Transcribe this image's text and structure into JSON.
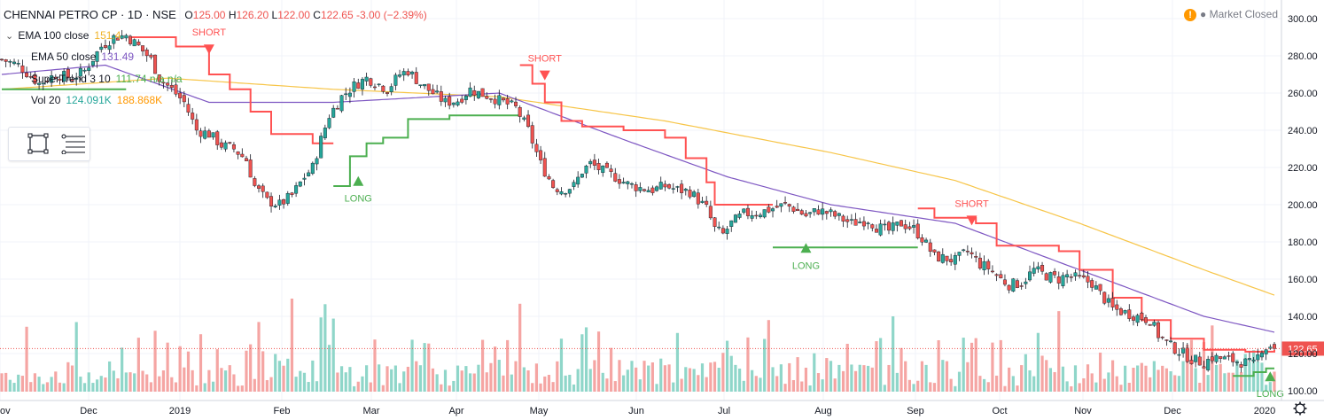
{
  "header": {
    "symbol": "CHENNAI PETRO CP · 1D · NSE",
    "ohlc_open_label": "O",
    "ohlc_open": "125.00",
    "ohlc_high_label": "H",
    "ohlc_high": "126.20",
    "ohlc_low_label": "L",
    "ohlc_low": "122.00",
    "ohlc_close_label": "C",
    "ohlc_close": "122.65",
    "ohlc_change": "-3.00 (−2.39%)",
    "market_status": "Market Closed",
    "market_icon": "!"
  },
  "indicators": [
    {
      "label": "EMA 100 close",
      "value": "151.4",
      "color": "#f7c548"
    },
    {
      "label": "EMA 50 close",
      "value": "131.49",
      "color": "#7e57c2"
    },
    {
      "label": "SuperTrend 3 10",
      "value": "111.74 n/a n/a",
      "color": "#4caf50"
    },
    {
      "label": "Vol 20",
      "value": "124.091K",
      "value2": "188.868K",
      "color": "#4caf50",
      "color2": "#ff9800"
    }
  ],
  "last_price_label": "122.65",
  "colors": {
    "up": "#26a69a",
    "down": "#ef5350",
    "vol_up": "#8fd6c9",
    "vol_down": "#f5a5a3",
    "st_up": "#4caf50",
    "st_down": "#ff5252",
    "ema100": "#f7c548",
    "ema50": "#7e57c2"
  },
  "chart_data": {
    "type": "candlestick",
    "title": "CHENNAI PETRO CP · 1D · NSE",
    "y_ticks": [
      "300.00",
      "280.00",
      "260.00",
      "240.00",
      "220.00",
      "200.00",
      "180.00",
      "160.00",
      "140.00",
      "120.00",
      "100.00"
    ],
    "ylim": [
      100,
      302
    ],
    "x_ticks": [
      "ov",
      "Dec",
      "2019",
      "Feb",
      "Mar",
      "Apr",
      "May",
      "Jun",
      "Jul",
      "Aug",
      "Sep",
      "Oct",
      "Nov",
      "Dec",
      "2020"
    ],
    "signals": [
      {
        "label": "SHORT",
        "type": "short",
        "date": "2019-01-10",
        "price": 288
      },
      {
        "label": "LONG",
        "type": "long",
        "date": "2019-03-01",
        "price": 213
      },
      {
        "label": "SHORT",
        "type": "short",
        "date": "2019-05-02",
        "price": 274
      },
      {
        "label": "LONG",
        "type": "long",
        "date": "2019-07-29",
        "price": 177
      },
      {
        "label": "SHORT",
        "type": "short",
        "date": "2019-09-23",
        "price": 196
      },
      {
        "label": "LONG",
        "type": "long",
        "date": "2020-01-01",
        "price": 108
      }
    ],
    "price_anchors": [
      [
        0,
        278
      ],
      [
        4,
        275
      ],
      [
        9,
        265
      ],
      [
        13,
        270
      ],
      [
        17,
        268
      ],
      [
        20,
        272
      ],
      [
        24,
        285
      ],
      [
        27,
        290
      ],
      [
        30,
        291
      ],
      [
        33,
        285
      ],
      [
        36,
        278
      ],
      [
        38,
        268
      ],
      [
        41,
        262
      ],
      [
        44,
        255
      ],
      [
        47,
        240
      ],
      [
        50,
        238
      ],
      [
        53,
        232
      ],
      [
        56,
        230
      ],
      [
        59,
        224
      ],
      [
        61,
        210
      ],
      [
        64,
        202
      ],
      [
        67,
        200
      ],
      [
        70,
        205
      ],
      [
        73,
        215
      ],
      [
        75,
        220
      ],
      [
        77,
        235
      ],
      [
        79,
        248
      ],
      [
        82,
        258
      ],
      [
        85,
        264
      ],
      [
        88,
        268
      ],
      [
        90,
        266
      ],
      [
        93,
        262
      ],
      [
        96,
        270
      ],
      [
        98,
        272
      ],
      [
        101,
        265
      ],
      [
        104,
        260
      ],
      [
        107,
        255
      ],
      [
        110,
        256
      ],
      [
        113,
        262
      ],
      [
        115,
        260
      ],
      [
        118,
        258
      ],
      [
        121,
        255
      ],
      [
        124,
        252
      ],
      [
        127,
        240
      ],
      [
        130,
        222
      ],
      [
        133,
        210
      ],
      [
        135,
        208
      ],
      [
        138,
        210
      ],
      [
        140,
        218
      ],
      [
        142,
        222
      ],
      [
        145,
        218
      ],
      [
        148,
        215
      ],
      [
        151,
        211
      ],
      [
        154,
        209
      ],
      [
        157,
        208
      ],
      [
        160,
        210
      ],
      [
        163,
        208
      ],
      [
        166,
        207
      ],
      [
        170,
        198
      ],
      [
        172,
        187
      ],
      [
        174,
        184
      ],
      [
        176,
        190
      ],
      [
        179,
        195
      ],
      [
        183,
        196
      ],
      [
        186,
        198
      ],
      [
        189,
        200
      ],
      [
        191,
        198
      ],
      [
        194,
        194
      ],
      [
        197,
        197
      ],
      [
        200,
        195
      ],
      [
        202,
        193
      ],
      [
        205,
        190
      ],
      [
        209,
        192
      ],
      [
        211,
        188
      ],
      [
        214,
        186
      ],
      [
        217,
        190
      ],
      [
        220,
        187
      ],
      [
        222,
        182
      ],
      [
        225,
        172
      ],
      [
        228,
        171
      ],
      [
        230,
        170
      ],
      [
        233,
        175
      ],
      [
        236,
        168
      ],
      [
        238,
        166
      ],
      [
        241,
        160
      ],
      [
        243,
        157
      ],
      [
        246,
        158
      ],
      [
        249,
        165
      ],
      [
        252,
        162
      ],
      [
        255,
        160
      ],
      [
        257,
        162
      ],
      [
        260,
        160
      ],
      [
        263,
        158
      ],
      [
        265,
        152
      ],
      [
        268,
        144
      ],
      [
        271,
        142
      ],
      [
        274,
        140
      ],
      [
        277,
        138
      ],
      [
        279,
        130
      ],
      [
        282,
        124
      ],
      [
        285,
        120
      ],
      [
        287,
        117
      ],
      [
        290,
        115
      ],
      [
        292,
        118
      ],
      [
        295,
        117
      ],
      [
        298,
        116
      ],
      [
        300,
        115
      ],
      [
        302,
        114
      ],
      [
        304,
        123
      ],
      [
        306,
        124
      ],
      [
        307,
        122.65
      ]
    ],
    "n_bars": 308,
    "ema100_anchors": [
      [
        0,
        262
      ],
      [
        40,
        268
      ],
      [
        80,
        262
      ],
      [
        120,
        258
      ],
      [
        160,
        245
      ],
      [
        200,
        228
      ],
      [
        230,
        213
      ],
      [
        260,
        190
      ],
      [
        290,
        165
      ],
      [
        307,
        151.4
      ]
    ],
    "ema50_anchors": [
      [
        0,
        270
      ],
      [
        25,
        275
      ],
      [
        50,
        255
      ],
      [
        80,
        255
      ],
      [
        120,
        260
      ],
      [
        150,
        235
      ],
      [
        175,
        215
      ],
      [
        200,
        200
      ],
      [
        230,
        190
      ],
      [
        260,
        165
      ],
      [
        290,
        140
      ],
      [
        307,
        131.49
      ]
    ],
    "supertrend": [
      {
        "dir": "up",
        "points": [
          [
            0,
            262
          ],
          [
            23,
            262
          ],
          [
            30,
            262
          ]
        ]
      },
      {
        "dir": "down",
        "points": [
          [
            31,
            290
          ],
          [
            37,
            290
          ],
          [
            42,
            285
          ],
          [
            50,
            270
          ],
          [
            55,
            262
          ],
          [
            60,
            250
          ],
          [
            65,
            238
          ],
          [
            75,
            233
          ],
          [
            80,
            233
          ]
        ]
      },
      {
        "dir": "up",
        "points": [
          [
            80,
            210
          ],
          [
            84,
            226
          ],
          [
            88,
            233
          ],
          [
            92,
            236
          ],
          [
            98,
            246
          ],
          [
            108,
            248
          ],
          [
            118,
            248
          ],
          [
            125,
            248
          ]
        ]
      },
      {
        "dir": "down",
        "points": [
          [
            125,
            275
          ],
          [
            128,
            265
          ],
          [
            131,
            255
          ],
          [
            135,
            245
          ],
          [
            140,
            242
          ],
          [
            150,
            240
          ],
          [
            160,
            236
          ],
          [
            165,
            225
          ],
          [
            170,
            212
          ],
          [
            172,
            200
          ],
          [
            180,
            200
          ],
          [
            186,
            200
          ]
        ]
      },
      {
        "dir": "up",
        "points": [
          [
            186,
            177
          ],
          [
            200,
            177
          ],
          [
            215,
            177
          ],
          [
            221,
            177
          ]
        ]
      },
      {
        "dir": "down",
        "points": [
          [
            221,
            198
          ],
          [
            225,
            193
          ],
          [
            235,
            190
          ],
          [
            240,
            178
          ],
          [
            255,
            175
          ],
          [
            260,
            165
          ],
          [
            268,
            150
          ],
          [
            275,
            138
          ],
          [
            282,
            128
          ],
          [
            290,
            122
          ],
          [
            300,
            121
          ],
          [
            307,
            122
          ]
        ]
      },
      {
        "dir": "up",
        "points": [
          [
            297,
            108
          ],
          [
            302,
            110
          ],
          [
            305,
            112
          ],
          [
            307,
            112
          ]
        ]
      }
    ],
    "volume_scale_k": [
      0,
      1500
    ],
    "volume_peak_bars": [
      6,
      18,
      33,
      37,
      62,
      70,
      77,
      78,
      80,
      125,
      135,
      180,
      185,
      215,
      232,
      255
    ]
  }
}
